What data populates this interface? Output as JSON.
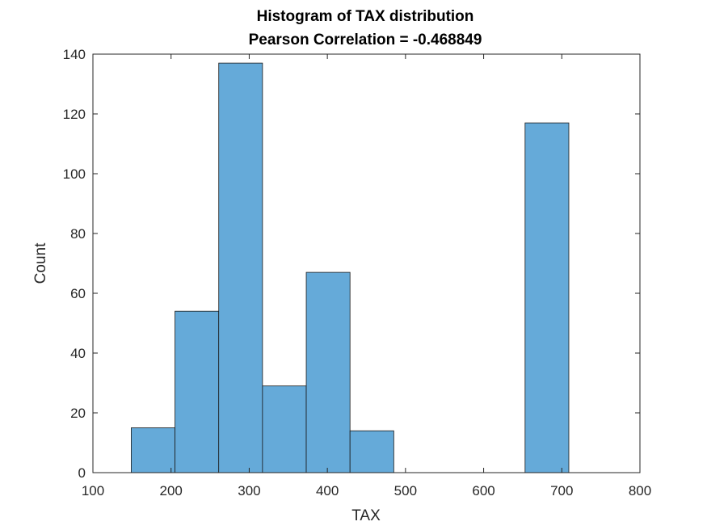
{
  "chart_data": {
    "type": "bar",
    "title": "Histogram of TAX distribution",
    "subtitle": "Pearson Correlation = -0.468849",
    "xlabel": "TAX",
    "ylabel": "Count",
    "xlim": [
      100,
      800
    ],
    "ylim": [
      0,
      140
    ],
    "xticks": [
      "100",
      "200",
      "300",
      "400",
      "500",
      "600",
      "700",
      "800"
    ],
    "yticks": [
      "0",
      "20",
      "40",
      "60",
      "80",
      "100",
      "120",
      "140"
    ],
    "grid": false,
    "bar_color": "#65aad9",
    "bin_edges": [
      149,
      205,
      261,
      317,
      373,
      429,
      485,
      541,
      597,
      653,
      709
    ],
    "values": [
      15,
      54,
      137,
      29,
      67,
      14,
      0,
      0,
      0,
      117
    ]
  }
}
